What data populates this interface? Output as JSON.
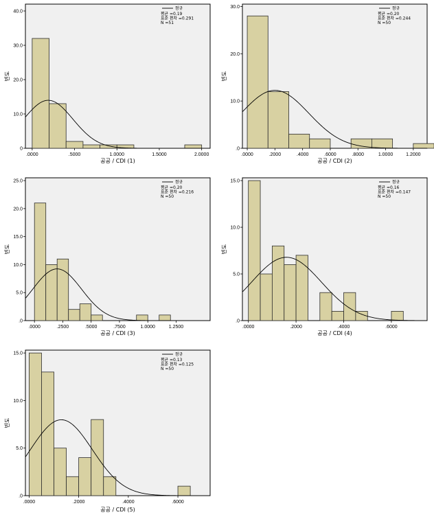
{
  "colors": {
    "bar_fill": "#d8d1a2",
    "bar_stroke": "#2b2b2b",
    "plot_bg": "#f0f0f0",
    "curve": "#000000"
  },
  "chart_data": [
    {
      "type": "bar",
      "title": "",
      "xlabel": "공공 / CDI (1)",
      "ylabel": "빈도",
      "legend": {
        "placement": "top-right",
        "entry": "정규",
        "lines": [
          "평균 =0.19",
          "표준 편차 =0.291",
          "N =51"
        ]
      },
      "xlim": [
        -0.08,
        2.1
      ],
      "ylim": [
        0,
        42
      ],
      "xticks": [
        0,
        0.5,
        1.0,
        1.5,
        2.0
      ],
      "xtick_labels": [
        ".0000",
        ".5000",
        "1.0000",
        "1.5000",
        "2.0000"
      ],
      "yticks": [
        0,
        10,
        20,
        30,
        40
      ],
      "ytick_labels": [
        "0",
        "10.0",
        "20.0",
        "30.0",
        "40.0"
      ],
      "bin_edges": [
        0,
        0.2,
        0.4,
        0.6,
        0.8,
        1.0,
        1.2,
        1.4,
        1.6,
        1.8,
        2.0
      ],
      "values": [
        32,
        13,
        2,
        1,
        1,
        1,
        0,
        0,
        0,
        1
      ],
      "normal": {
        "mean": 0.19,
        "sd": 0.291,
        "n": 51
      }
    },
    {
      "type": "bar",
      "title": "",
      "xlabel": "공공 / CDI (2)",
      "ylabel": "빈도",
      "legend": {
        "placement": "top-right",
        "entry": "정규",
        "lines": [
          "평균 =0.20",
          "표준 편차 =0.244",
          "N =50"
        ]
      },
      "xlim": [
        -0.035,
        1.3
      ],
      "ylim": [
        0,
        30.5
      ],
      "xticks": [
        0,
        0.2,
        0.4,
        0.6,
        0.8,
        1.0,
        1.2
      ],
      "xtick_labels": [
        ".0000",
        ".2000",
        ".4000",
        ".6000",
        ".8000",
        "1.0000",
        "1.2000"
      ],
      "yticks": [
        0,
        10,
        20,
        30
      ],
      "ytick_labels": [
        ".0",
        "10.0",
        "20.0",
        "30.0"
      ],
      "bin_edges": [
        0,
        0.15,
        0.3,
        0.45,
        0.6,
        0.75,
        0.9,
        1.05,
        1.2,
        1.35
      ],
      "values": [
        28,
        12,
        3,
        2,
        0,
        2,
        2,
        0,
        1
      ],
      "normal": {
        "mean": 0.2,
        "sd": 0.244,
        "n": 50
      }
    },
    {
      "type": "bar",
      "title": "",
      "xlabel": "공공 / CDI (3)",
      "ylabel": "빈도",
      "legend": {
        "placement": "top-right",
        "entry": "정규",
        "lines": [
          "평균 =0.20",
          "표준 편차 =0.216",
          "N =50"
        ]
      },
      "xlim": [
        -0.08,
        1.55
      ],
      "ylim": [
        0,
        25.5
      ],
      "xticks": [
        0,
        0.25,
        0.5,
        0.75,
        1.0,
        1.25
      ],
      "xtick_labels": [
        ".0000",
        ".2500",
        ".5000",
        ".7500",
        "1.0000",
        "1.2500"
      ],
      "yticks": [
        0,
        5,
        10,
        15,
        20,
        25
      ],
      "ytick_labels": [
        ".0",
        "5.0",
        "10.0",
        "15.0",
        "20.0",
        "25.0"
      ],
      "bin_edges": [
        0,
        0.1,
        0.2,
        0.3,
        0.4,
        0.5,
        0.6,
        0.7,
        0.8,
        0.9,
        1.0,
        1.1,
        1.2
      ],
      "values": [
        21,
        10,
        11,
        2,
        3,
        1,
        0,
        0,
        0,
        1,
        0,
        1
      ],
      "normal": {
        "mean": 0.2,
        "sd": 0.216,
        "n": 50
      }
    },
    {
      "type": "bar",
      "title": "",
      "xlabel": "공공 / CDI (4)",
      "ylabel": "빈도",
      "legend": {
        "placement": "top-right",
        "entry": "정규",
        "lines": [
          "평균 =0.16",
          "표준 편차 =0.147",
          "N =50"
        ]
      },
      "xlim": [
        -0.025,
        0.75
      ],
      "ylim": [
        0,
        15.3
      ],
      "xticks": [
        0,
        0.2,
        0.4,
        0.6
      ],
      "xtick_labels": [
        ".0000",
        ".2000",
        ".4000",
        ".6000"
      ],
      "yticks": [
        0,
        5,
        10,
        15
      ],
      "ytick_labels": [
        ".0",
        "5.0",
        "10.0",
        "15.0"
      ],
      "bin_edges": [
        0,
        0.05,
        0.1,
        0.15,
        0.2,
        0.25,
        0.3,
        0.35,
        0.4,
        0.45,
        0.5,
        0.55,
        0.6,
        0.65
      ],
      "values": [
        15,
        5,
        8,
        6,
        7,
        0,
        3,
        1,
        3,
        1,
        0,
        0,
        1
      ],
      "normal": {
        "mean": 0.16,
        "sd": 0.147,
        "n": 50
      }
    },
    {
      "type": "bar",
      "title": "",
      "xlabel": "공공 / CDI (5)",
      "ylabel": "빈도",
      "legend": {
        "placement": "top-right",
        "entry": "정규",
        "lines": [
          "평균 =0.13",
          "표준 편차 =0.125",
          "N =50"
        ]
      },
      "xlim": [
        -0.015,
        0.73
      ],
      "ylim": [
        0,
        15.3
      ],
      "xticks": [
        0,
        0.2,
        0.4,
        0.6
      ],
      "xtick_labels": [
        ".0000",
        ".2000",
        ".4000",
        ".6000"
      ],
      "yticks": [
        0,
        5,
        10,
        15
      ],
      "ytick_labels": [
        ".0",
        "5.0",
        "10.0",
        "15.0"
      ],
      "bin_edges": [
        0,
        0.05,
        0.1,
        0.15,
        0.2,
        0.25,
        0.3,
        0.35,
        0.4,
        0.45,
        0.5,
        0.55,
        0.6,
        0.65
      ],
      "values": [
        15,
        13,
        5,
        2,
        4,
        8,
        2,
        0,
        0,
        0,
        0,
        0,
        1
      ],
      "normal": {
        "mean": 0.13,
        "sd": 0.125,
        "n": 50
      }
    }
  ]
}
